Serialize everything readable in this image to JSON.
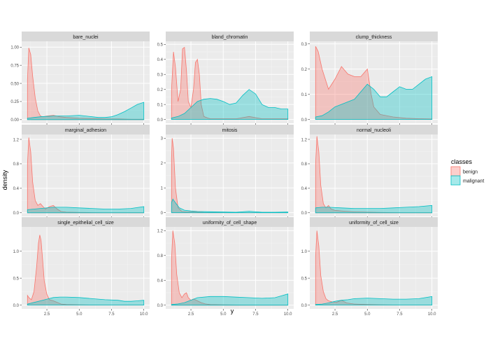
{
  "chart_data": {
    "type": "area",
    "facet": "wrap",
    "x_label": "y",
    "y_label": "density",
    "x_range": [
      0.55,
      10.45
    ],
    "x_ticks": [
      2.5,
      5.0,
      7.5,
      10.0
    ],
    "x_tick_labels": [
      "2.5",
      "5.0",
      "7.5",
      "10.0"
    ],
    "grid": true,
    "legend": {
      "title": "classes",
      "position": "right",
      "entries": [
        {
          "name": "benign",
          "fill": "#f8766d"
        },
        {
          "name": "malignant",
          "fill": "#00bfc4"
        }
      ]
    },
    "panels": [
      {
        "title": "bare_nuclei",
        "y_range": [
          -0.05,
          1.08
        ],
        "y_ticks": [
          0,
          0.25,
          0.5,
          0.75,
          1.0
        ],
        "y_tick_labels": [
          "0.00",
          "0.25",
          "0.50",
          "0.75",
          "1.00"
        ],
        "series": [
          {
            "name": "benign",
            "x": [
              1,
              1.1,
              1.25,
              1.4,
              1.6,
              1.8,
              2.0,
              2.2,
              2.5,
              3,
              3.5,
              4,
              5,
              6,
              7,
              8,
              9,
              10
            ],
            "y": [
              0.55,
              0.99,
              0.9,
              0.6,
              0.3,
              0.12,
              0.05,
              0.04,
              0.05,
              0.06,
              0.04,
              0.03,
              0.02,
              0.015,
              0.01,
              0.01,
              0.005,
              0.005
            ]
          },
          {
            "name": "malignant",
            "x": [
              1,
              1.5,
              2,
              3,
              4,
              5,
              5.5,
              6,
              6.5,
              7,
              7.5,
              8,
              8.5,
              9,
              9.5,
              10
            ],
            "y": [
              0.02,
              0.03,
              0.04,
              0.05,
              0.05,
              0.06,
              0.05,
              0.04,
              0.03,
              0.03,
              0.04,
              0.07,
              0.11,
              0.16,
              0.21,
              0.24
            ]
          }
        ]
      },
      {
        "title": "bland_chromatin",
        "y_range": [
          -0.025,
          0.52
        ],
        "y_ticks": [
          0,
          0.1,
          0.2,
          0.3,
          0.4,
          0.5
        ],
        "y_tick_labels": [
          "0.0",
          "0.1",
          "0.2",
          "0.3",
          "0.4",
          "0.5"
        ],
        "series": [
          {
            "name": "benign",
            "x": [
              1,
              1.15,
              1.3,
              1.5,
              1.7,
              1.85,
              2.0,
              2.15,
              2.3,
              2.5,
              2.7,
              2.85,
              3.0,
              3.15,
              3.3,
              3.5,
              3.8,
              4,
              5,
              6,
              7,
              8,
              9,
              10
            ],
            "y": [
              0.2,
              0.45,
              0.35,
              0.12,
              0.2,
              0.47,
              0.48,
              0.33,
              0.12,
              0.08,
              0.2,
              0.38,
              0.4,
              0.3,
              0.1,
              0.02,
              0.01,
              0.005,
              0.005,
              0.005,
              0.02,
              0.005,
              0.005,
              0.005
            ]
          },
          {
            "name": "malignant",
            "x": [
              1,
              1.5,
              2,
              2.5,
              3,
              3.5,
              4,
              4.5,
              5,
              5.5,
              6,
              6.5,
              7,
              7.5,
              8,
              8.5,
              9,
              9.5,
              10
            ],
            "y": [
              0.01,
              0.02,
              0.04,
              0.08,
              0.12,
              0.135,
              0.14,
              0.135,
              0.12,
              0.1,
              0.11,
              0.16,
              0.2,
              0.17,
              0.1,
              0.08,
              0.08,
              0.07,
              0.07
            ]
          }
        ]
      },
      {
        "title": "clump_thickness",
        "y_range": [
          -0.015,
          0.31
        ],
        "y_ticks": [
          0,
          0.1,
          0.2,
          0.3
        ],
        "y_tick_labels": [
          "0.0",
          "0.1",
          "0.2",
          "0.3"
        ],
        "series": [
          {
            "name": "benign",
            "x": [
              1,
              1.2,
              1.5,
              2,
              2.5,
              3,
              3.5,
              4,
              4.5,
              5,
              5.3,
              5.5,
              6,
              7,
              8,
              9,
              10
            ],
            "y": [
              0.29,
              0.27,
              0.2,
              0.12,
              0.16,
              0.21,
              0.18,
              0.17,
              0.17,
              0.2,
              0.1,
              0.05,
              0.02,
              0.01,
              0.005,
              0.003,
              0.002
            ]
          },
          {
            "name": "malignant",
            "x": [
              1,
              1.5,
              2,
              2.5,
              3,
              3.5,
              4,
              4.5,
              5,
              5.5,
              6,
              6.5,
              7,
              7.5,
              8,
              8.5,
              9,
              9.5,
              10
            ],
            "y": [
              0.01,
              0.015,
              0.03,
              0.05,
              0.06,
              0.07,
              0.08,
              0.11,
              0.14,
              0.12,
              0.09,
              0.09,
              0.11,
              0.13,
              0.12,
              0.12,
              0.14,
              0.16,
              0.17
            ]
          }
        ]
      },
      {
        "title": "marginal_adhesion",
        "y_range": [
          -0.06,
          1.28
        ],
        "y_ticks": [
          0,
          0.4,
          0.8,
          1.2
        ],
        "y_tick_labels": [
          "0.0",
          "0.4",
          "0.8",
          "1.2"
        ],
        "series": [
          {
            "name": "benign",
            "x": [
              1,
              1.1,
              1.25,
              1.4,
              1.6,
              1.8,
              2.0,
              2.2,
              2.4,
              2.7,
              3.0,
              3.3,
              3.6,
              4,
              5,
              6,
              7,
              8,
              9,
              10
            ],
            "y": [
              0.8,
              1.23,
              1.0,
              0.5,
              0.2,
              0.12,
              0.15,
              0.1,
              0.06,
              0.1,
              0.12,
              0.06,
              0.02,
              0.01,
              0.005,
              0.003,
              0.002,
              0.002,
              0.001,
              0.001
            ]
          },
          {
            "name": "malignant",
            "x": [
              1,
              1.5,
              2,
              3,
              4,
              5,
              6,
              7,
              8,
              9,
              10
            ],
            "y": [
              0.05,
              0.06,
              0.07,
              0.09,
              0.09,
              0.08,
              0.07,
              0.06,
              0.06,
              0.07,
              0.1
            ]
          }
        ]
      },
      {
        "title": "mitosis",
        "y_range": [
          -0.15,
          3.15
        ],
        "y_ticks": [
          0,
          1,
          2,
          3
        ],
        "y_tick_labels": [
          "0",
          "1",
          "2",
          "3"
        ],
        "series": [
          {
            "name": "benign",
            "x": [
              1,
              1.05,
              1.15,
              1.3,
              1.5,
              1.8,
              2.2,
              2.8,
              3.5,
              4.5,
              6,
              7,
              8,
              10
            ],
            "y": [
              2.2,
              3.0,
              2.6,
              1.0,
              0.2,
              0.05,
              0.03,
              0.03,
              0.01,
              0.005,
              0.003,
              0.002,
              0.001,
              0.001
            ]
          },
          {
            "name": "malignant",
            "x": [
              1,
              1.1,
              1.3,
              1.6,
              2,
              2.5,
              3,
              4,
              5,
              6,
              7,
              8,
              9,
              10
            ],
            "y": [
              0.4,
              0.55,
              0.4,
              0.2,
              0.1,
              0.07,
              0.05,
              0.04,
              0.03,
              0.02,
              0.06,
              0.02,
              0.02,
              0.03
            ]
          }
        ]
      },
      {
        "title": "normal_nucleoli",
        "y_range": [
          -0.06,
          1.28
        ],
        "y_ticks": [
          0,
          0.4,
          0.8,
          1.2
        ],
        "y_tick_labels": [
          "0.0",
          "0.4",
          "0.8",
          "1.2"
        ],
        "series": [
          {
            "name": "benign",
            "x": [
              1,
              1.1,
              1.25,
              1.4,
              1.6,
              1.8,
              2.0,
              2.2,
              2.5,
              3,
              4,
              5,
              6,
              7,
              8,
              9,
              10
            ],
            "y": [
              0.8,
              1.25,
              1.0,
              0.45,
              0.15,
              0.08,
              0.12,
              0.06,
              0.04,
              0.03,
              0.015,
              0.01,
              0.005,
              0.003,
              0.002,
              0.001,
              0.001
            ]
          },
          {
            "name": "malignant",
            "x": [
              1,
              1.5,
              2,
              3,
              4,
              5,
              6,
              7,
              8,
              9,
              10
            ],
            "y": [
              0.08,
              0.09,
              0.09,
              0.08,
              0.07,
              0.07,
              0.07,
              0.08,
              0.09,
              0.1,
              0.12
            ]
          }
        ]
      },
      {
        "title": "single_epithelial_cell_size",
        "y_range": [
          -0.07,
          1.45
        ],
        "y_ticks": [
          0,
          0.5,
          1.0
        ],
        "y_tick_labels": [
          "0.0",
          "0.5",
          "1.0"
        ],
        "series": [
          {
            "name": "benign",
            "x": [
              1,
              1.1,
              1.3,
              1.5,
              1.7,
              1.85,
              1.95,
              2.05,
              2.15,
              2.3,
              2.5,
              2.7,
              3.0,
              3.3,
              3.6,
              4,
              5,
              6,
              7,
              8,
              10
            ],
            "y": [
              0.18,
              0.14,
              0.1,
              0.25,
              0.7,
              1.15,
              1.3,
              1.2,
              0.9,
              0.45,
              0.2,
              0.1,
              0.08,
              0.05,
              0.02,
              0.01,
              0.005,
              0.003,
              0.002,
              0.001,
              0.001
            ]
          },
          {
            "name": "malignant",
            "x": [
              1,
              1.5,
              2,
              2.5,
              3,
              3.5,
              4,
              5,
              6,
              7,
              8,
              8.5,
              9,
              9.5,
              10
            ],
            "y": [
              0.02,
              0.05,
              0.08,
              0.11,
              0.14,
              0.15,
              0.15,
              0.14,
              0.12,
              0.1,
              0.09,
              0.07,
              0.07,
              0.08,
              0.09
            ]
          }
        ]
      },
      {
        "title": "uniformity_of_cell_shape",
        "y_range": [
          -0.06,
          1.26
        ],
        "y_ticks": [
          0,
          0.4,
          0.8,
          1.2
        ],
        "y_tick_labels": [
          "0.0",
          "0.4",
          "0.8",
          "1.2"
        ],
        "series": [
          {
            "name": "benign",
            "x": [
              1,
              1.1,
              1.25,
              1.4,
              1.6,
              1.8,
              2.0,
              2.15,
              2.3,
              2.5,
              2.7,
              3.0,
              3.3,
              3.6,
              4,
              5,
              6,
              7,
              8,
              10
            ],
            "y": [
              0.75,
              1.2,
              1.0,
              0.5,
              0.2,
              0.12,
              0.18,
              0.2,
              0.12,
              0.08,
              0.1,
              0.07,
              0.04,
              0.02,
              0.01,
              0.005,
              0.003,
              0.002,
              0.001,
              0.001
            ]
          },
          {
            "name": "malignant",
            "x": [
              1,
              1.5,
              2,
              2.5,
              3,
              4,
              5,
              6,
              7,
              8,
              9,
              9.5,
              10
            ],
            "y": [
              0.01,
              0.02,
              0.04,
              0.08,
              0.12,
              0.14,
              0.14,
              0.13,
              0.12,
              0.11,
              0.12,
              0.15,
              0.18
            ]
          }
        ]
      },
      {
        "title": "uniformity_of_cell_size",
        "y_range": [
          -0.07,
          1.45
        ],
        "y_ticks": [
          0,
          0.5,
          1.0
        ],
        "y_tick_labels": [
          "0.0",
          "0.5",
          "1.0"
        ],
        "series": [
          {
            "name": "benign",
            "x": [
              1,
              1.1,
              1.25,
              1.4,
              1.6,
              1.8,
              2.0,
              2.3,
              2.6,
              3.0,
              3.4,
              4,
              5,
              6,
              7,
              8,
              10
            ],
            "y": [
              0.9,
              1.38,
              1.1,
              0.55,
              0.25,
              0.12,
              0.08,
              0.06,
              0.05,
              0.09,
              0.04,
              0.02,
              0.01,
              0.005,
              0.003,
              0.002,
              0.001
            ]
          },
          {
            "name": "malignant",
            "x": [
              1,
              1.5,
              2,
              2.5,
              3,
              3.5,
              4,
              5,
              6,
              7,
              8,
              9,
              10
            ],
            "y": [
              0.01,
              0.02,
              0.04,
              0.07,
              0.09,
              0.1,
              0.12,
              0.13,
              0.12,
              0.11,
              0.11,
              0.12,
              0.16
            ]
          }
        ]
      }
    ]
  }
}
